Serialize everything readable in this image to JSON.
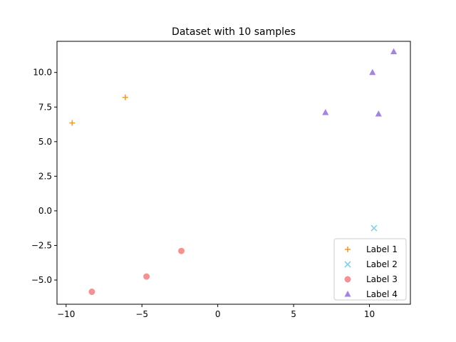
{
  "chart_data": {
    "type": "scatter",
    "title": "Dataset with 10 samples",
    "xlabel": "",
    "ylabel": "",
    "xlim": [
      -10.6,
      12.7
    ],
    "ylim": [
      -6.75,
      12.25
    ],
    "xticks": [
      -10,
      -5,
      0,
      5,
      10
    ],
    "yticks": [
      -5.0,
      -2.5,
      0.0,
      2.5,
      5.0,
      7.5,
      10.0
    ],
    "grid": false,
    "legend": "lower-right",
    "series": [
      {
        "name": "Label 1",
        "marker": "plus",
        "color": "#f39c2a",
        "points": [
          [
            -9.6,
            6.35
          ],
          [
            -6.1,
            8.2
          ]
        ]
      },
      {
        "name": "Label 2",
        "marker": "x",
        "color": "#87ceeb",
        "points": [
          [
            10.3,
            -1.25
          ]
        ]
      },
      {
        "name": "Label 3",
        "marker": "circle",
        "color": "#f08080",
        "points": [
          [
            -8.3,
            -5.85
          ],
          [
            -4.7,
            -4.75
          ],
          [
            -2.4,
            -2.9
          ]
        ]
      },
      {
        "name": "Label 4",
        "marker": "triangle",
        "color": "#9370db",
        "points": [
          [
            7.1,
            7.1
          ],
          [
            10.2,
            10.0
          ],
          [
            10.6,
            7.0
          ],
          [
            11.6,
            11.5
          ]
        ]
      }
    ]
  }
}
